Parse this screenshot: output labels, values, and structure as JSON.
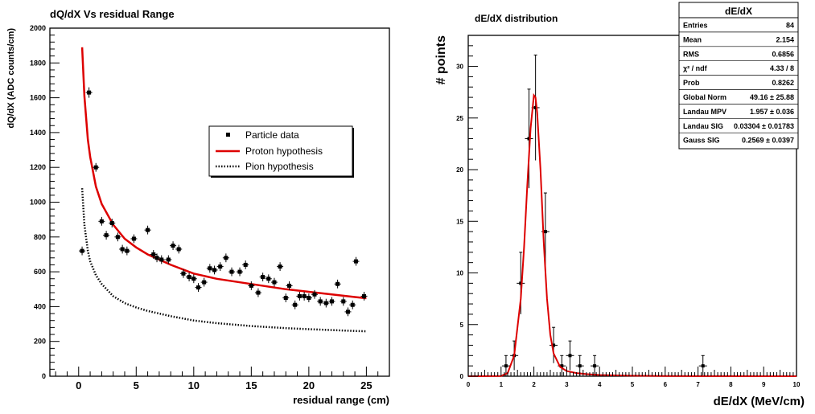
{
  "chart_data": [
    {
      "type": "scatter",
      "title": "dQ/dX Vs residual Range",
      "xlabel": "residual range (cm)",
      "ylabel": "dQ/dX (ADC counts/cm)",
      "xlim": [
        -2.5,
        27
      ],
      "ylim": [
        0,
        2000
      ],
      "xticks": [
        "0",
        "5",
        "10",
        "15",
        "20",
        "25"
      ],
      "yticks": [
        "0",
        "200",
        "400",
        "600",
        "800",
        "1000",
        "1200",
        "1400",
        "1600",
        "1800",
        "2000"
      ],
      "grid": false,
      "legend_position": "right-center",
      "legend": [
        "Particle data",
        "Proton hypothesis",
        "Pion hypothesis"
      ],
      "series": [
        {
          "name": "Particle data",
          "style": "points-with-error-bars",
          "color": "#000000",
          "x": [
            0.3,
            0.9,
            1.5,
            2.0,
            2.4,
            2.9,
            3.4,
            3.8,
            4.2,
            4.8,
            6.0,
            6.5,
            6.8,
            7.2,
            7.8,
            8.2,
            8.7,
            9.1,
            9.6,
            10.0,
            10.4,
            10.9,
            11.4,
            11.8,
            12.3,
            12.8,
            13.3,
            14.0,
            14.5,
            15.0,
            15.6,
            16.0,
            16.5,
            17.0,
            17.5,
            18.0,
            18.3,
            18.8,
            19.2,
            19.6,
            20.0,
            20.5,
            21.0,
            21.5,
            22.0,
            22.5,
            23.0,
            23.4,
            23.8,
            24.1,
            24.8
          ],
          "y": [
            720,
            1630,
            1200,
            890,
            810,
            880,
            800,
            730,
            720,
            790,
            840,
            700,
            680,
            670,
            670,
            750,
            730,
            590,
            570,
            560,
            510,
            540,
            620,
            610,
            630,
            680,
            600,
            600,
            640,
            520,
            480,
            570,
            560,
            540,
            630,
            450,
            520,
            410,
            460,
            460,
            450,
            470,
            430,
            420,
            430,
            530,
            430,
            370,
            410,
            660,
            460
          ],
          "yerr": [
            25,
            30,
            25,
            25,
            25,
            25,
            25,
            25,
            25,
            25,
            25,
            25,
            25,
            25,
            25,
            25,
            25,
            25,
            25,
            25,
            25,
            25,
            25,
            25,
            25,
            25,
            25,
            25,
            25,
            25,
            25,
            25,
            25,
            25,
            25,
            25,
            25,
            25,
            25,
            25,
            25,
            25,
            25,
            25,
            25,
            25,
            25,
            25,
            25,
            25,
            25
          ]
        },
        {
          "name": "Proton hypothesis",
          "style": "line",
          "color": "#dd0000",
          "x": [
            0.3,
            0.5,
            0.8,
            1.0,
            1.5,
            2.0,
            3.0,
            4.0,
            5.0,
            6.0,
            8.0,
            10.0,
            12.0,
            15.0,
            18.0,
            20.0,
            22.0,
            24.0,
            25.0
          ],
          "y": [
            1890,
            1610,
            1360,
            1260,
            1090,
            990,
            870,
            790,
            740,
            700,
            640,
            590,
            560,
            530,
            500,
            485,
            470,
            455,
            448
          ]
        },
        {
          "name": "Pion hypothesis",
          "style": "dotted-line",
          "color": "#000000",
          "x": [
            0.3,
            0.5,
            0.8,
            1.0,
            1.5,
            2.0,
            3.0,
            4.0,
            5.0,
            6.0,
            8.0,
            10.0,
            12.0,
            15.0,
            18.0,
            20.0,
            22.0,
            24.0,
            25.0
          ],
          "y": [
            1080,
            870,
            720,
            660,
            580,
            530,
            460,
            420,
            395,
            375,
            345,
            320,
            305,
            288,
            276,
            270,
            265,
            260,
            258
          ]
        }
      ]
    },
    {
      "type": "histogram",
      "title": "dE/dX distribution",
      "xlabel": "dE/dX (MeV/cm)",
      "ylabel": "# points",
      "xlim": [
        0,
        10
      ],
      "ylim": [
        0,
        33
      ],
      "xticks": [
        "0",
        "1",
        "2",
        "3",
        "4",
        "5",
        "6",
        "7",
        "8",
        "9",
        "10"
      ],
      "yticks": [
        "0",
        "5",
        "10",
        "15",
        "20",
        "25",
        "30"
      ],
      "grid": false,
      "color_fit": "#dd0000",
      "bins": {
        "x": [
          1.15,
          1.4,
          1.6,
          1.85,
          2.05,
          2.35,
          2.6,
          2.85,
          3.1,
          3.4,
          3.85,
          7.15
        ],
        "y": [
          1,
          2,
          9,
          23,
          26,
          14,
          3,
          1,
          2,
          1,
          1,
          1
        ]
      },
      "fit": {
        "x": [
          0.0,
          1.0,
          1.2,
          1.4,
          1.6,
          1.7,
          1.8,
          1.9,
          2.0,
          2.05,
          2.1,
          2.2,
          2.3,
          2.4,
          2.5,
          2.6,
          2.8,
          3.0,
          3.3,
          3.6,
          4.0,
          5.0,
          6.0,
          7.0,
          8.0,
          9.0,
          10.0
        ],
        "y": [
          0,
          0.02,
          0.3,
          2.0,
          7.5,
          12.5,
          18.5,
          24.0,
          27.2,
          27.0,
          25.5,
          20.0,
          13.0,
          7.5,
          4.0,
          2.2,
          0.9,
          0.5,
          0.3,
          0.2,
          0.12,
          0.05,
          0.02,
          0.01,
          0.005,
          0,
          0
        ]
      },
      "stats": {
        "title": "dE/dX",
        "rows": [
          [
            "Entries",
            "84"
          ],
          [
            "Mean",
            "2.154"
          ],
          [
            "RMS",
            "0.6856"
          ],
          [
            "χ² / ndf",
            "4.33 / 8"
          ],
          [
            "Prob",
            "0.8262"
          ],
          [
            "Global Norm",
            "49.16 ± 25.88"
          ],
          [
            "Landau MPV",
            "1.957 ± 0.036"
          ],
          [
            "Landau SIG",
            "0.03304 ± 0.01783"
          ],
          [
            "Gauss SIG",
            "0.2569 ± 0.0397"
          ]
        ]
      }
    }
  ]
}
